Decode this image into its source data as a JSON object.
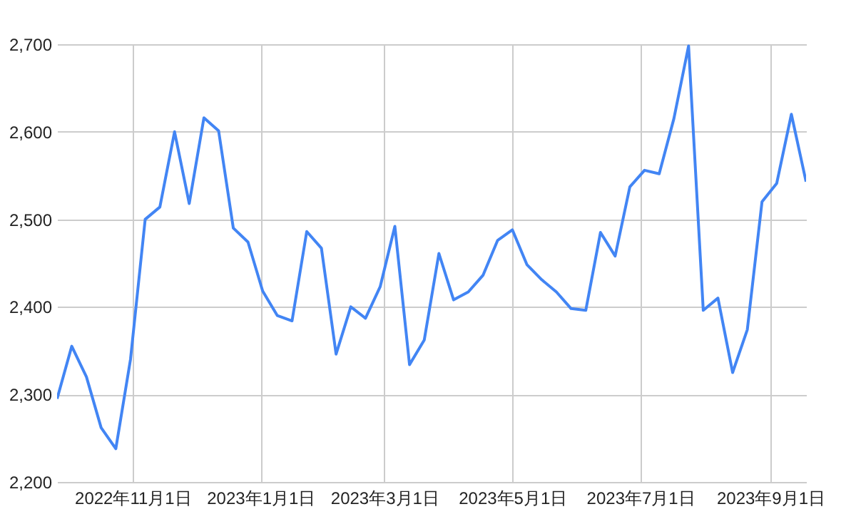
{
  "chart_data": {
    "type": "line",
    "x": [
      "2022-09-26",
      "2022-10-03",
      "2022-10-10",
      "2022-10-17",
      "2022-10-24",
      "2022-10-31",
      "2022-11-07",
      "2022-11-14",
      "2022-11-21",
      "2022-11-28",
      "2022-12-05",
      "2022-12-12",
      "2022-12-19",
      "2022-12-26",
      "2023-01-02",
      "2023-01-09",
      "2023-01-16",
      "2023-01-23",
      "2023-01-30",
      "2023-02-06",
      "2023-02-13",
      "2023-02-20",
      "2023-02-27",
      "2023-03-06",
      "2023-03-13",
      "2023-03-20",
      "2023-03-27",
      "2023-04-03",
      "2023-04-10",
      "2023-04-17",
      "2023-04-24",
      "2023-05-01",
      "2023-05-08",
      "2023-05-15",
      "2023-05-22",
      "2023-05-29",
      "2023-06-05",
      "2023-06-12",
      "2023-06-19",
      "2023-06-26",
      "2023-07-03",
      "2023-07-10",
      "2023-07-17",
      "2023-07-24",
      "2023-07-31",
      "2023-08-07",
      "2023-08-14",
      "2023-08-21",
      "2023-08-28",
      "2023-09-04",
      "2023-09-11",
      "2023-09-18"
    ],
    "series": [
      {
        "color": "#4285f4",
        "values": [
          2295,
          2355,
          2320,
          2262,
          2238,
          2340,
          2500,
          2514,
          2600,
          2518,
          2616,
          2601,
          2490,
          2474,
          2418,
          2390,
          2384,
          2486,
          2467,
          2346,
          2400,
          2387,
          2423,
          2492,
          2334,
          2362,
          2461,
          2408,
          2417,
          2436,
          2476,
          2488,
          2448,
          2431,
          2417,
          2398,
          2396,
          2485,
          2458,
          2537,
          2556,
          2552,
          2615,
          2698,
          2396,
          2410,
          2325,
          2374,
          2520,
          2541,
          2620,
          2543
        ]
      }
    ],
    "xlim": [
      "2022-09-26",
      "2023-09-18"
    ],
    "xticks": [
      {
        "value": "2022-11-01",
        "label": "2022年11月1日"
      },
      {
        "value": "2023-01-01",
        "label": "2023年1月1日"
      },
      {
        "value": "2023-03-01",
        "label": "2023年3月1日"
      },
      {
        "value": "2023-05-01",
        "label": "2023年5月1日"
      },
      {
        "value": "2023-07-01",
        "label": "2023年7月1日"
      },
      {
        "value": "2023-09-01",
        "label": "2023年9月1日"
      }
    ],
    "ylim": [
      2200,
      2700
    ],
    "yticks": [
      {
        "value": 2200,
        "label": "2,200"
      },
      {
        "value": 2300,
        "label": "2,300"
      },
      {
        "value": 2400,
        "label": "2,400"
      },
      {
        "value": 2500,
        "label": "2,500"
      },
      {
        "value": 2600,
        "label": "2,600"
      },
      {
        "value": 2700,
        "label": "2,700"
      }
    ],
    "grid": true,
    "marker": "none",
    "line_style": "solid"
  }
}
